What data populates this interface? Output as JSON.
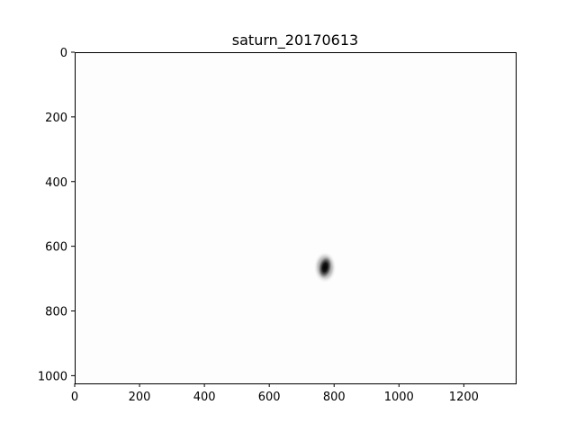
{
  "chart_data": {
    "type": "heatmap",
    "title": "saturn_20170613",
    "xlabel": "",
    "ylabel": "",
    "colormap": "gray_r",
    "background_color": "#fdfdfd",
    "x_extent": [
      0,
      1360
    ],
    "y_extent": [
      1024,
      0
    ],
    "x_ticks": [
      0,
      200,
      400,
      600,
      800,
      1000,
      1200
    ],
    "y_ticks": [
      0,
      200,
      400,
      600,
      800,
      1000
    ],
    "grid": false,
    "blob": {
      "center_x": 772,
      "center_y": 665,
      "radius_x": 22,
      "radius_y": 38,
      "peak_value": 1.0
    }
  }
}
